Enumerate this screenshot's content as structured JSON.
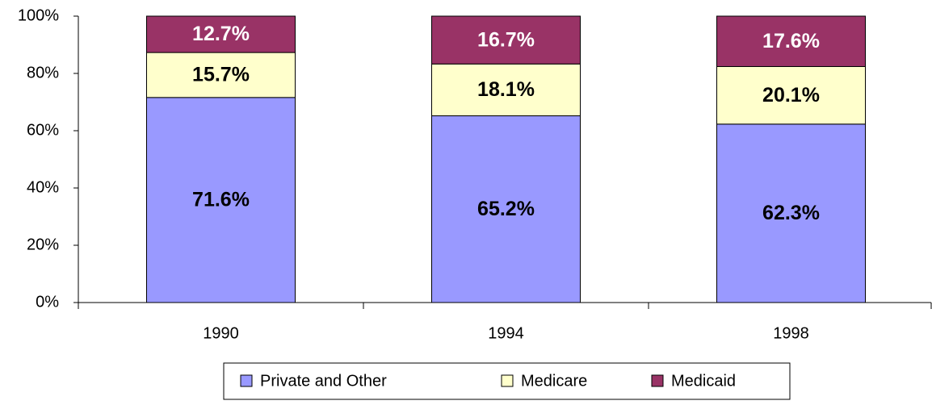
{
  "chart_data": {
    "type": "stacked_bar",
    "categories": [
      "1990",
      "1994",
      "1998"
    ],
    "series": [
      {
        "name": "Private and Other",
        "color": "#9999ff",
        "values": [
          71.6,
          65.2,
          62.3
        ],
        "value_labels": [
          "71.6%",
          "65.2%",
          "62.3%"
        ]
      },
      {
        "name": "Medicare",
        "color": "#ffffcc",
        "values": [
          15.7,
          18.1,
          20.1
        ],
        "value_labels": [
          "15.7%",
          "18.1%",
          "20.1%"
        ]
      },
      {
        "name": "Medicaid",
        "color": "#993366",
        "values": [
          12.7,
          16.7,
          17.6
        ],
        "value_labels": [
          "12.7%",
          "16.7%",
          "17.6%"
        ]
      }
    ],
    "ylim": [
      0,
      100
    ],
    "yticks": [
      {
        "value": 0,
        "label": "0%"
      },
      {
        "value": 20,
        "label": "20%"
      },
      {
        "value": 40,
        "label": "40%"
      },
      {
        "value": 60,
        "label": "60%"
      },
      {
        "value": 80,
        "label": "80%"
      },
      {
        "value": 100,
        "label": "100%"
      }
    ],
    "legend": "bottom"
  }
}
